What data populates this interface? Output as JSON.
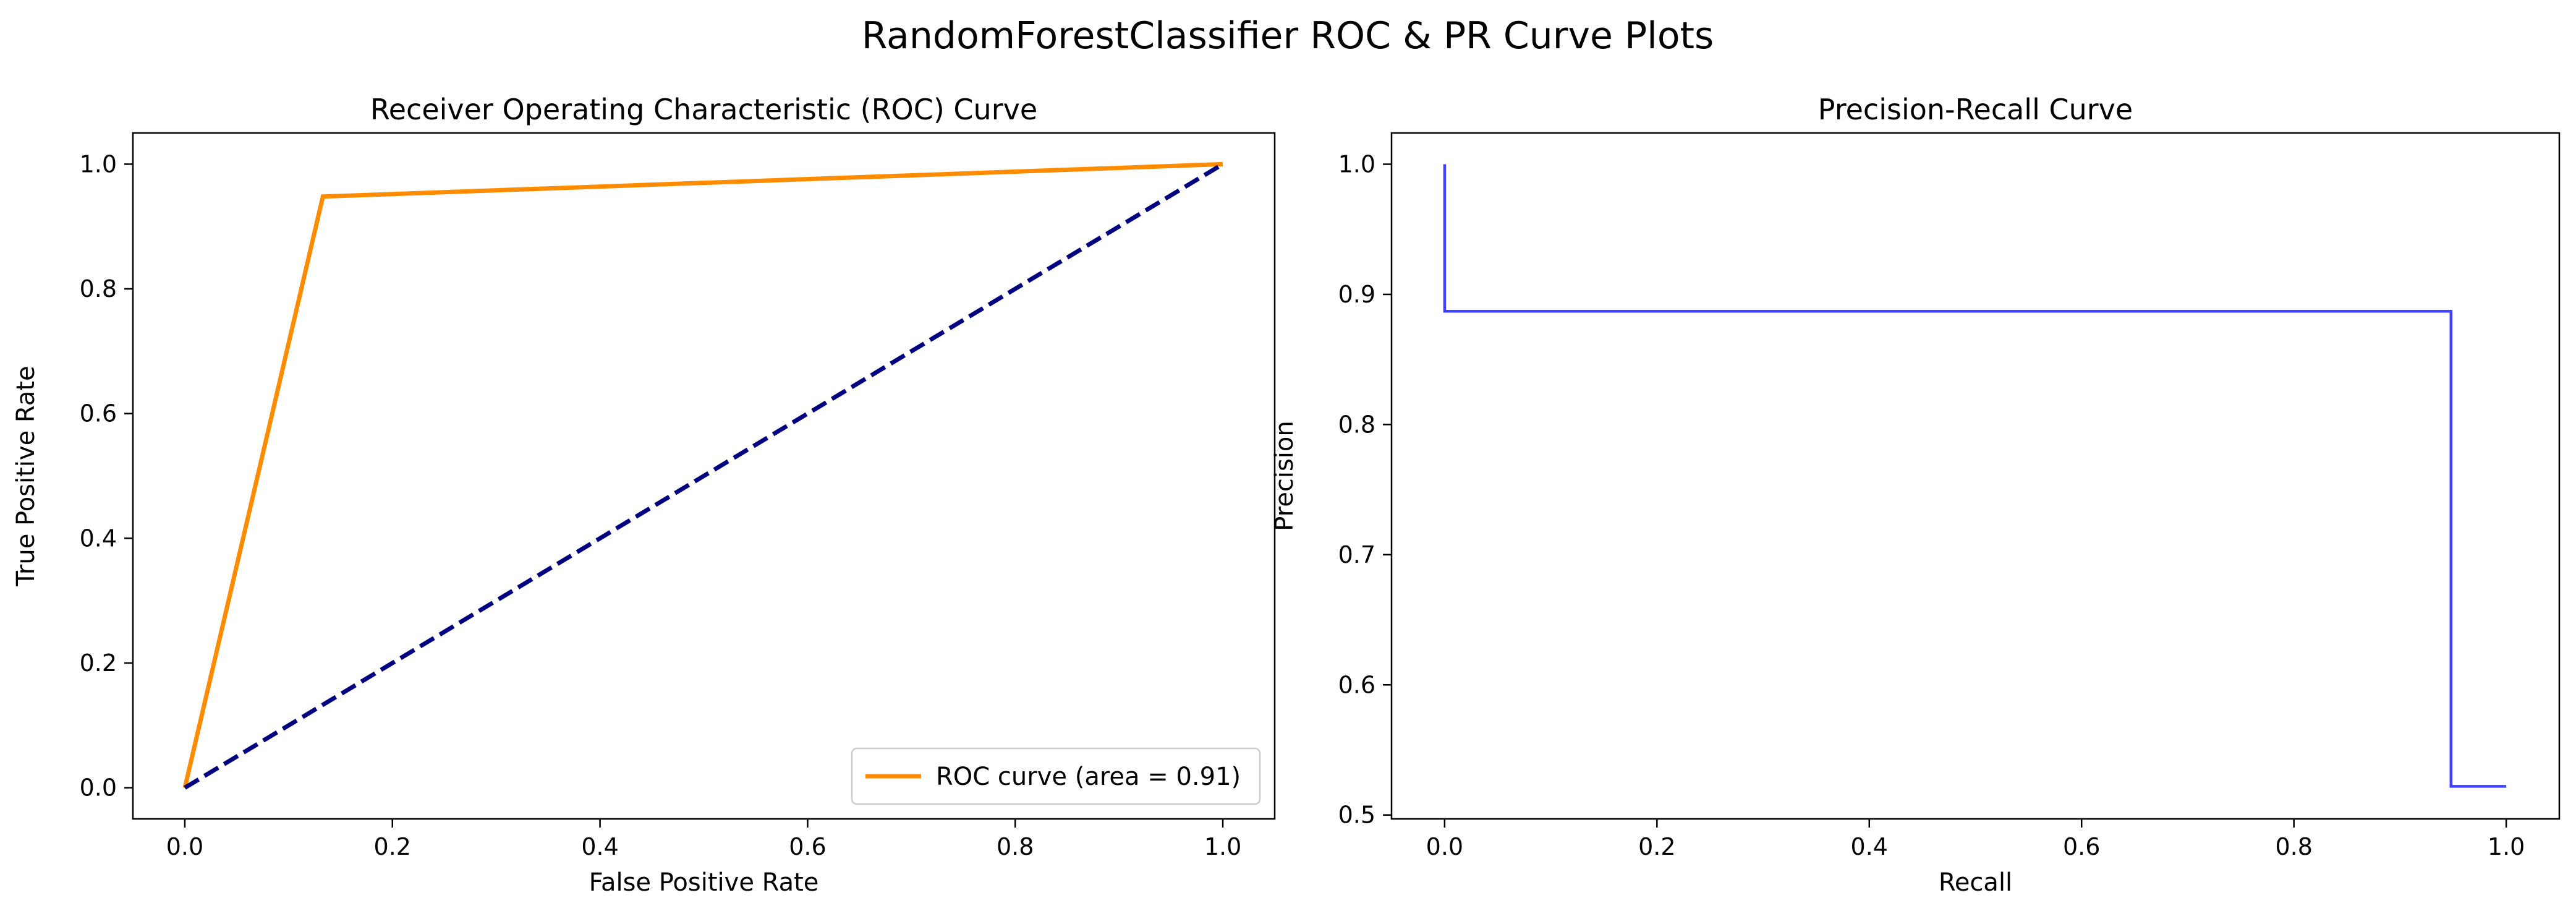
{
  "figure": {
    "title": "RandomForestClassifier ROC & PR Curve Plots"
  },
  "colors": {
    "roc_curve": "#ff8c00",
    "diagonal": "#000080",
    "pr_curve": "#0000ff",
    "legend_border": "#cccccc"
  },
  "chart_data": [
    {
      "type": "line",
      "title": "Receiver Operating Characteristic (ROC) Curve",
      "xlabel": "False Positive Rate",
      "ylabel": "True Positive Rate",
      "xlim": [
        -0.05,
        1.05
      ],
      "ylim": [
        -0.05,
        1.05
      ],
      "xticks": [
        "0.0",
        "0.2",
        "0.4",
        "0.6",
        "0.8",
        "1.0"
      ],
      "yticks": [
        "0.0",
        "0.2",
        "0.4",
        "0.6",
        "0.8",
        "1.0"
      ],
      "grid": false,
      "legend_position": "lower-right",
      "series": [
        {
          "name": "ROC curve (area = 0.91)",
          "style": "solid",
          "x": [
            0.0,
            0.133,
            1.0
          ],
          "y": [
            0.0,
            0.948,
            1.0
          ]
        },
        {
          "style": "dashed",
          "x": [
            0.0,
            1.0
          ],
          "y": [
            0.0,
            1.0
          ]
        }
      ]
    },
    {
      "type": "line",
      "title": "Precision-Recall Curve",
      "xlabel": "Recall",
      "ylabel": "Precision",
      "xlim": [
        -0.05,
        1.05
      ],
      "ylim": [
        0.497,
        1.024
      ],
      "xticks": [
        "0.0",
        "0.2",
        "0.4",
        "0.6",
        "0.8",
        "1.0"
      ],
      "yticks": [
        "0.5",
        "0.6",
        "0.7",
        "0.8",
        "0.9",
        "1.0"
      ],
      "grid": false,
      "drawstyle": "steps-post",
      "series": [
        {
          "style": "step",
          "x": [
            0.0,
            0.0,
            0.948,
            0.948,
            1.0
          ],
          "y": [
            1.0,
            0.887,
            0.887,
            0.522,
            0.522
          ]
        }
      ]
    }
  ]
}
